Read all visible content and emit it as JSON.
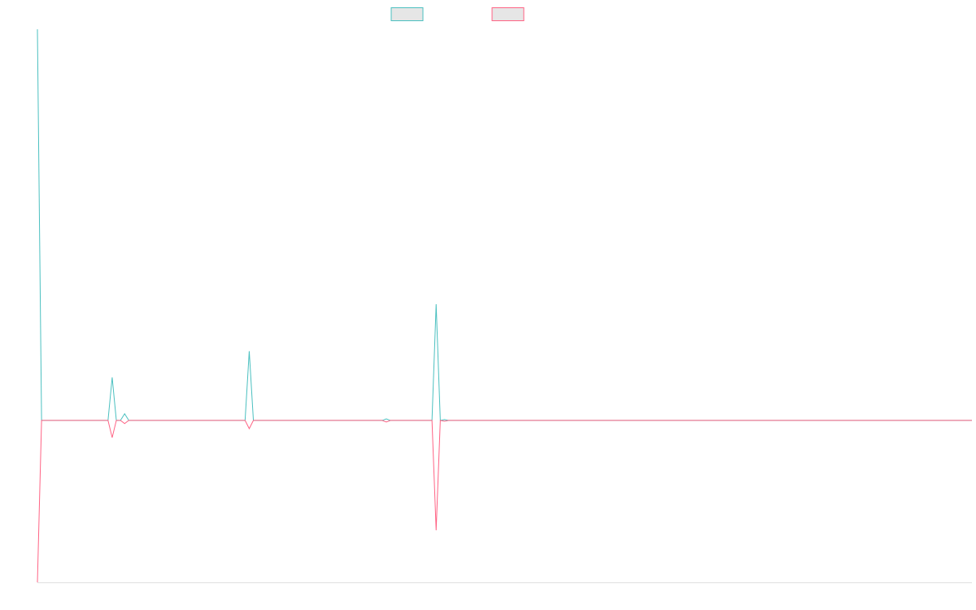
{
  "chart_data": {
    "type": "line",
    "ylim": [
      -41.4,
      100
    ],
    "series": [
      {
        "color": "#4bc0c0",
        "values": [
          100,
          0,
          0,
          0,
          0,
          0,
          0,
          0,
          0,
          0,
          0,
          0,
          0,
          0,
          0,
          0,
          0,
          0,
          11,
          0,
          0,
          1.7,
          0,
          0,
          0,
          0,
          0,
          0,
          0,
          0,
          0,
          0,
          0,
          0,
          0,
          0,
          0,
          0,
          0,
          0,
          0,
          0,
          0,
          0,
          0,
          0,
          0,
          0,
          0,
          0,
          0,
          17.7,
          0,
          0,
          0,
          0,
          0,
          0,
          0,
          0,
          0,
          0,
          0,
          0,
          0,
          0,
          0,
          0,
          0,
          0,
          0,
          0,
          0,
          0,
          0,
          0,
          0,
          0,
          0,
          0,
          0,
          0,
          0,
          0,
          0.4,
          0,
          0,
          0,
          0,
          0,
          0,
          0,
          0,
          0,
          0,
          0,
          29.7,
          0,
          0.2,
          0,
          0,
          0,
          0,
          0,
          0,
          0,
          0,
          0,
          0,
          0,
          0,
          0,
          0,
          0,
          0,
          0,
          0,
          0,
          0,
          0,
          0,
          0,
          0,
          0,
          0,
          0,
          0,
          0,
          0,
          0,
          0,
          0,
          0,
          0,
          0,
          0,
          0,
          0,
          0,
          0,
          0,
          0,
          0,
          0,
          0,
          0,
          0,
          0,
          0,
          0,
          0,
          0,
          0,
          0,
          0,
          0,
          0,
          0,
          0,
          0,
          0,
          0,
          0,
          0,
          0,
          0,
          0,
          0,
          0,
          0,
          0,
          0,
          0,
          0,
          0,
          0,
          0,
          0,
          0,
          0,
          0,
          0,
          0,
          0,
          0,
          0,
          0,
          0,
          0,
          0,
          0,
          0,
          0,
          0,
          0,
          0,
          0,
          0,
          0,
          0,
          0,
          0,
          0,
          0,
          0,
          0,
          0,
          0,
          0,
          0,
          0,
          0,
          0,
          0,
          0,
          0,
          0,
          0,
          0,
          0,
          0,
          0,
          0,
          0,
          0,
          0
        ]
      },
      {
        "color": "#ff6384",
        "values": [
          -41.4,
          0,
          0,
          0,
          0,
          0,
          0,
          0,
          0,
          0,
          0,
          0,
          0,
          0,
          0,
          0,
          0,
          0,
          -4.4,
          0,
          0,
          -0.8,
          0,
          0,
          0,
          0,
          0,
          0,
          0,
          0,
          0,
          0,
          0,
          0,
          0,
          0,
          0,
          0,
          0,
          0,
          0,
          0,
          0,
          0,
          0,
          0,
          0,
          0,
          0,
          0,
          0,
          -2.1,
          0,
          0,
          0,
          0,
          0,
          0,
          0,
          0,
          0,
          0,
          0,
          0,
          0,
          0,
          0,
          0,
          0,
          0,
          0,
          0,
          0,
          0,
          0,
          0,
          0,
          0,
          0,
          0,
          0,
          0,
          0,
          0,
          -0.4,
          0,
          0,
          0,
          0,
          0,
          0,
          0,
          0,
          0,
          0,
          0,
          -28.1,
          0,
          -0.2,
          0,
          0,
          0,
          0,
          0,
          0,
          0,
          0,
          0,
          0,
          0,
          0,
          0,
          0,
          0,
          0,
          0,
          0,
          0,
          0,
          0,
          0,
          0,
          0,
          0,
          0,
          0,
          0,
          0,
          0,
          0,
          0,
          0,
          0,
          0,
          0,
          0,
          0,
          0,
          0,
          0,
          0,
          0,
          0,
          0,
          0,
          0,
          0,
          0,
          0,
          0,
          0,
          0,
          0,
          0,
          0,
          0,
          0,
          0,
          0,
          0,
          0,
          0,
          0,
          0,
          0,
          0,
          0,
          0,
          0,
          0,
          0,
          0,
          0,
          0,
          0,
          0,
          0,
          0,
          0,
          0,
          0,
          0,
          0,
          0,
          0,
          0,
          0,
          0,
          0,
          0,
          0,
          0,
          0,
          0,
          0,
          0,
          0,
          0,
          0,
          0,
          0,
          0,
          0,
          0,
          0,
          0,
          0,
          0,
          0,
          0,
          0,
          0,
          0,
          0,
          0,
          0,
          0,
          0,
          0,
          0,
          0,
          0,
          0,
          0,
          0,
          0
        ]
      }
    ]
  }
}
